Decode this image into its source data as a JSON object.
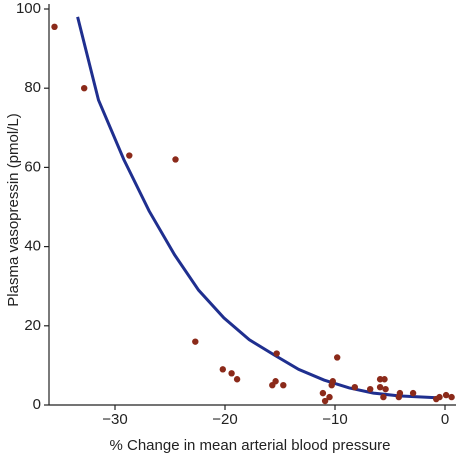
{
  "chart_data": {
    "type": "scatter",
    "x_label": "% Change in mean arterial blood pressure",
    "y_label": "Plasma vasopressin (pmol/L)",
    "xlim": [
      -36,
      1
    ],
    "ylim": [
      0,
      100
    ],
    "xticks": [
      {
        "value": -30,
        "label": "−30"
      },
      {
        "value": -20,
        "label": "−20"
      },
      {
        "value": -10,
        "label": "−10"
      },
      0
    ],
    "yticks": [
      0,
      20,
      40,
      60,
      80,
      100
    ],
    "series": [
      {
        "type": "scatter",
        "color": "#8b2a1a",
        "x": [
          -35.5,
          -32.8,
          -28.7,
          -24.5,
          -22.7,
          -20.2,
          -19.4,
          -18.9,
          -15.3,
          -15.7,
          -15.4,
          -14.7,
          -9.8,
          -11.1,
          -10.5,
          -10.9,
          -10.2,
          -10.3,
          -8.2,
          -6.8,
          -5.9,
          -5.5,
          -5.9,
          -5.4,
          -5.6,
          -4.1,
          -2.9,
          -4.2,
          -0.5,
          0.1,
          0.6,
          -0.8
        ],
        "y": [
          95.5,
          80,
          63,
          62,
          16,
          9,
          8,
          6.5,
          13,
          5,
          6,
          5,
          12,
          3,
          2,
          1,
          6,
          5,
          4.5,
          4,
          6.5,
          6.5,
          4.5,
          4,
          2,
          3,
          3,
          2,
          2,
          2.5,
          2,
          1.5
        ]
      },
      {
        "type": "line",
        "color": "#1f2f8f",
        "x": [
          -33.4,
          -31.5,
          -29.2,
          -26.9,
          -24.6,
          -22.4,
          -20.1,
          -17.8,
          -15.5,
          -13.3,
          -11,
          -8.7,
          -6.5,
          -4.2,
          -0.5
        ],
        "y": [
          98,
          77,
          62,
          49,
          38,
          29,
          22,
          16.5,
          12.6,
          9,
          6.3,
          4.3,
          3,
          2.3,
          1.8
        ]
      }
    ]
  }
}
